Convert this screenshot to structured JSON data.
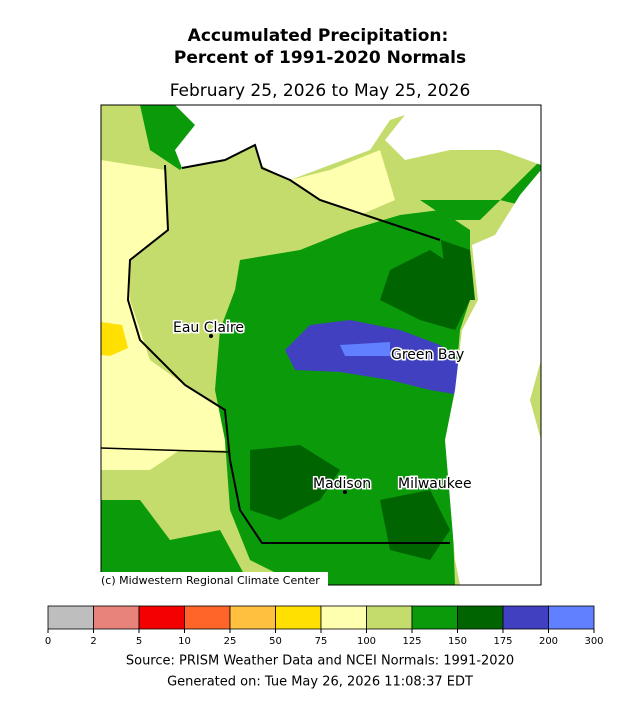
{
  "header": {
    "title_line1": "Accumulated Precipitation:",
    "title_line2": "Percent of 1991-2020 Normals",
    "date_range": "February 25, 2026 to May 25, 2026"
  },
  "map": {
    "cities": [
      {
        "label": "Eau Claire"
      },
      {
        "label": "Green Bay"
      },
      {
        "label": "Madison"
      },
      {
        "label": "Milwaukee"
      }
    ],
    "credit": "(c) Midwestern Regional Climate Center"
  },
  "legend": {
    "ticks": [
      0,
      2,
      5,
      10,
      25,
      50,
      75,
      100,
      125,
      150,
      175,
      200,
      300
    ],
    "colors": [
      "#bebebe",
      "#e8837b",
      "#f50000",
      "#ff6428",
      "#ffc040",
      "#ffe000",
      "#ffffb0",
      "#c4dc6c",
      "#0a9a0a",
      "#006400",
      "#4040c0",
      "#6080ff"
    ]
  },
  "footer": {
    "source": "Source: PRISM Weather Data and NCEI Normals: 1991-2020",
    "generated": "Generated on: Tue May 26, 2026 11:08:37 EDT"
  }
}
